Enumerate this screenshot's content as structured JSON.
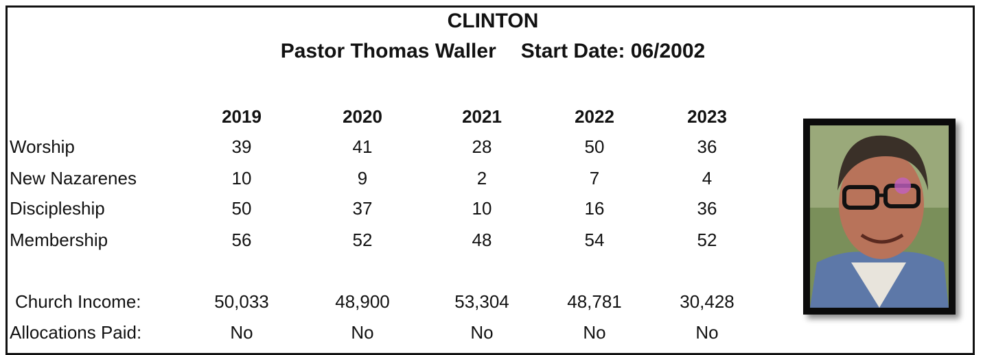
{
  "header": {
    "title": "CLINTON",
    "pastor": "Pastor Thomas Waller",
    "start_date": "Start Date: 06/2002"
  },
  "table": {
    "columns": [
      "2019",
      "2020",
      "2021",
      "2022",
      "2023"
    ],
    "rows": [
      {
        "label": "Worship",
        "values": [
          "39",
          "41",
          "28",
          "50",
          "36"
        ]
      },
      {
        "label": "New Nazarenes",
        "values": [
          "10",
          "9",
          "2",
          "7",
          "4"
        ]
      },
      {
        "label": "Discipleship",
        "values": [
          "50",
          "37",
          "10",
          "16",
          "36"
        ]
      },
      {
        "label": "Membership",
        "values": [
          "56",
          "52",
          "48",
          "54",
          "52"
        ]
      },
      {
        "label": "Church Income:",
        "values": [
          "50,033",
          "48,900",
          "53,304",
          "48,781",
          "30,428"
        ]
      },
      {
        "label": "Allocations Paid:",
        "values": [
          "No",
          "No",
          "No",
          "No",
          "No"
        ]
      }
    ]
  }
}
